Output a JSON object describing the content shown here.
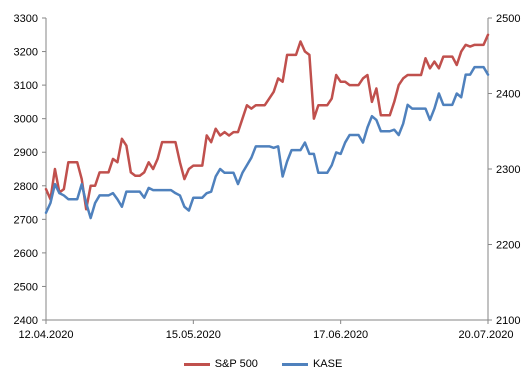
{
  "chart_data": {
    "type": "line",
    "x_tick_labels": [
      "12.04.2020",
      "15.05.2020",
      "17.06.2020",
      "20.07.2020"
    ],
    "y_left": {
      "ylim": [
        2400,
        3300
      ],
      "ticks": [
        2400,
        2500,
        2600,
        2700,
        2800,
        2900,
        3000,
        3100,
        3200,
        3300
      ]
    },
    "y_right": {
      "ylim": [
        2100,
        2500
      ],
      "ticks": [
        2100,
        2200,
        2300,
        2400,
        2500
      ]
    },
    "grid": false,
    "legend_position": "bottom",
    "colors": {
      "sp500": "#c0504d",
      "kase": "#4f81bd"
    },
    "series": [
      {
        "name": "S&P 500",
        "axis": "left",
        "values": [
          2790,
          2760,
          2850,
          2780,
          2790,
          2870,
          2870,
          2870,
          2820,
          2730,
          2800,
          2800,
          2840,
          2840,
          2840,
          2880,
          2870,
          2940,
          2920,
          2840,
          2830,
          2830,
          2840,
          2870,
          2850,
          2880,
          2930,
          2930,
          2930,
          2930,
          2870,
          2820,
          2850,
          2860,
          2860,
          2860,
          2950,
          2930,
          2970,
          2950,
          2960,
          2950,
          2960,
          2960,
          3000,
          3040,
          3030,
          3040,
          3040,
          3040,
          3060,
          3080,
          3120,
          3110,
          3190,
          3190,
          3190,
          3230,
          3200,
          3190,
          3000,
          3040,
          3040,
          3040,
          3060,
          3130,
          3110,
          3110,
          3100,
          3100,
          3100,
          3120,
          3130,
          3050,
          3090,
          3010,
          3010,
          3010,
          3050,
          3100,
          3120,
          3130,
          3130,
          3130,
          3130,
          3180,
          3150,
          3170,
          3150,
          3185,
          3185,
          3185,
          3160,
          3200,
          3220,
          3215,
          3220,
          3220,
          3220,
          3250
        ]
      },
      {
        "name": "KASE",
        "axis": "right",
        "values": [
          2242,
          2255,
          2280,
          2268,
          2265,
          2260,
          2260,
          2260,
          2280,
          2255,
          2235,
          2255,
          2265,
          2265,
          2265,
          2268,
          2260,
          2250,
          2270,
          2270,
          2270,
          2270,
          2262,
          2275,
          2272,
          2272,
          2272,
          2272,
          2272,
          2268,
          2265,
          2250,
          2245,
          2262,
          2262,
          2262,
          2268,
          2270,
          2290,
          2300,
          2295,
          2295,
          2295,
          2280,
          2295,
          2305,
          2315,
          2330,
          2330,
          2330,
          2330,
          2328,
          2330,
          2290,
          2310,
          2325,
          2325,
          2325,
          2335,
          2320,
          2320,
          2295,
          2295,
          2295,
          2305,
          2322,
          2320,
          2335,
          2345,
          2345,
          2345,
          2335,
          2355,
          2370,
          2365,
          2350,
          2350,
          2350,
          2352,
          2345,
          2360,
          2385,
          2380,
          2380,
          2380,
          2380,
          2365,
          2380,
          2400,
          2385,
          2385,
          2385,
          2400,
          2395,
          2425,
          2425,
          2435,
          2435,
          2435,
          2425
        ]
      }
    ]
  }
}
